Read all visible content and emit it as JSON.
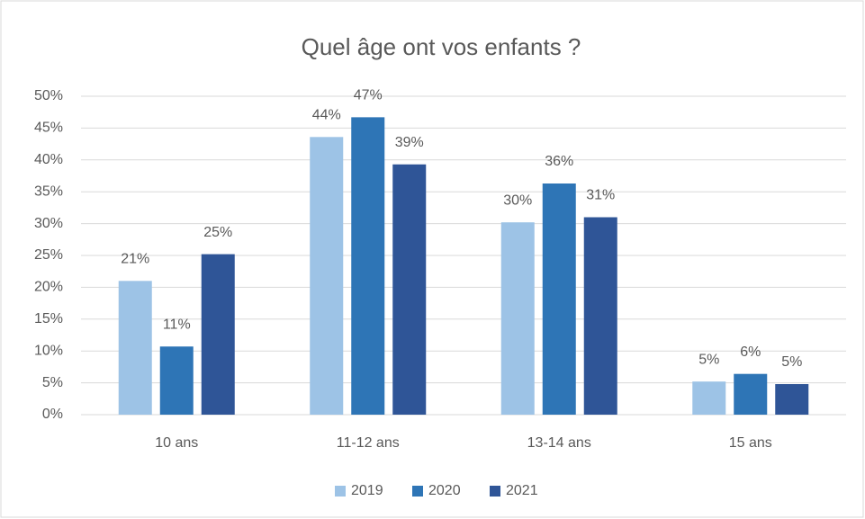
{
  "chart_data": {
    "type": "bar",
    "title": "Quel âge ont vos enfants ?",
    "categories": [
      "10 ans",
      "11-12 ans",
      "13-14 ans",
      "15 ans"
    ],
    "series": [
      {
        "name": "2019",
        "color": "#9dc3e6",
        "values": [
          21,
          43.6,
          30.2,
          5.2
        ],
        "value_labels": [
          "21%",
          "44%",
          "30%",
          "5%"
        ]
      },
      {
        "name": "2020",
        "color": "#2e75b6",
        "values": [
          10.7,
          46.7,
          36.3,
          6.4
        ],
        "value_labels": [
          "11%",
          "47%",
          "36%",
          "6%"
        ]
      },
      {
        "name": "2021",
        "color": "#2f5597",
        "values": [
          25.2,
          39.3,
          31,
          4.8
        ],
        "value_labels": [
          "25%",
          "39%",
          "31%",
          "5%"
        ]
      }
    ],
    "ylim": [
      0,
      50
    ],
    "yticks": [
      {
        "value": 0,
        "label": "0%"
      },
      {
        "value": 5,
        "label": "5%"
      },
      {
        "value": 10,
        "label": "10%"
      },
      {
        "value": 15,
        "label": "15%"
      },
      {
        "value": 20,
        "label": "20%"
      },
      {
        "value": 25,
        "label": "25%"
      },
      {
        "value": 30,
        "label": "30%"
      },
      {
        "value": 35,
        "label": "35%"
      },
      {
        "value": 40,
        "label": "40%"
      },
      {
        "value": 45,
        "label": "45%"
      },
      {
        "value": 50,
        "label": "50%"
      }
    ],
    "grid": true,
    "legend": "bottom"
  }
}
